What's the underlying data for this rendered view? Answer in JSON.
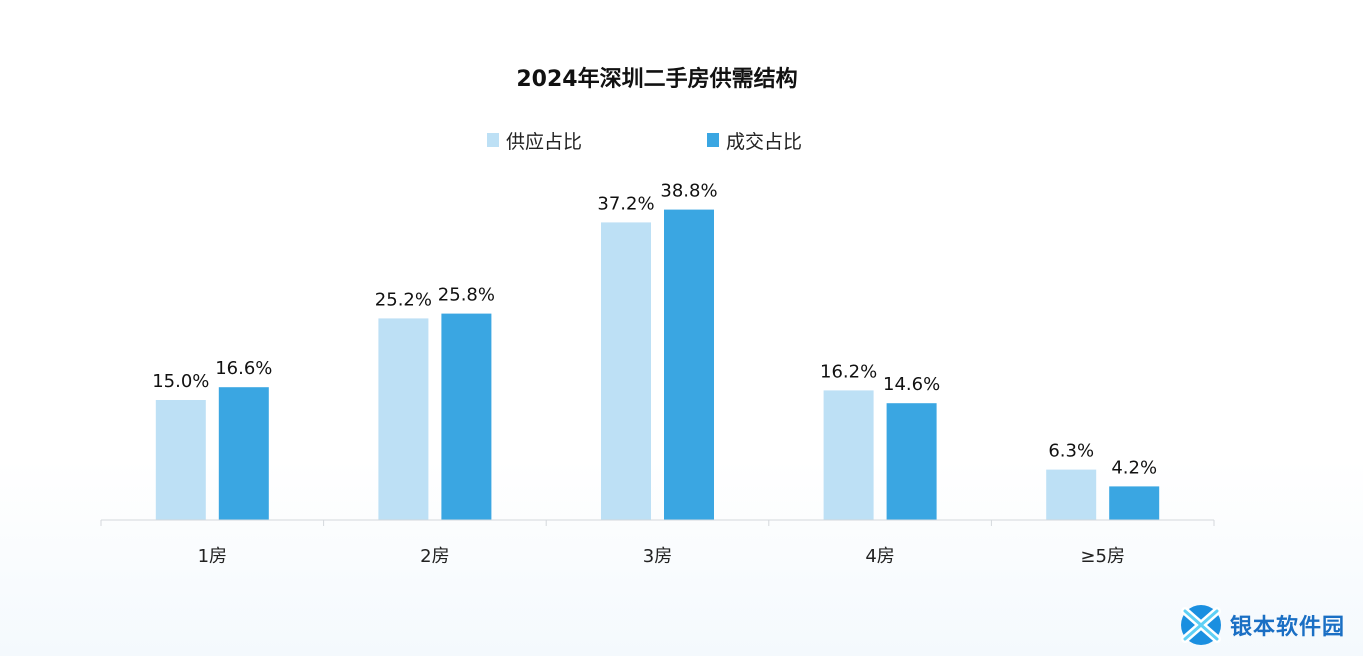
{
  "chart_data": {
    "type": "bar",
    "title": "2024年深圳二手房供需结构",
    "categories": [
      "1房",
      "2房",
      "3房",
      "4房",
      "≥5房"
    ],
    "series": [
      {
        "name": "供应占比",
        "values": [
          15.0,
          25.2,
          37.2,
          16.2,
          6.3
        ],
        "labels": [
          "15.0%",
          "25.2%",
          "37.2%",
          "16.2%",
          "6.3%"
        ],
        "color": "#bde0f5"
      },
      {
        "name": "成交占比",
        "values": [
          16.6,
          25.8,
          38.8,
          14.6,
          4.2
        ],
        "labels": [
          "16.6%",
          "25.8%",
          "38.8%",
          "14.6%",
          "4.2%"
        ],
        "color": "#3aa6e2"
      }
    ],
    "ylim": [
      0,
      40
    ],
    "xlabel": "",
    "ylabel": "",
    "grid": false,
    "legend": "top-center"
  },
  "watermark": {
    "text": "银本软件园",
    "icon": "logo-icon"
  }
}
